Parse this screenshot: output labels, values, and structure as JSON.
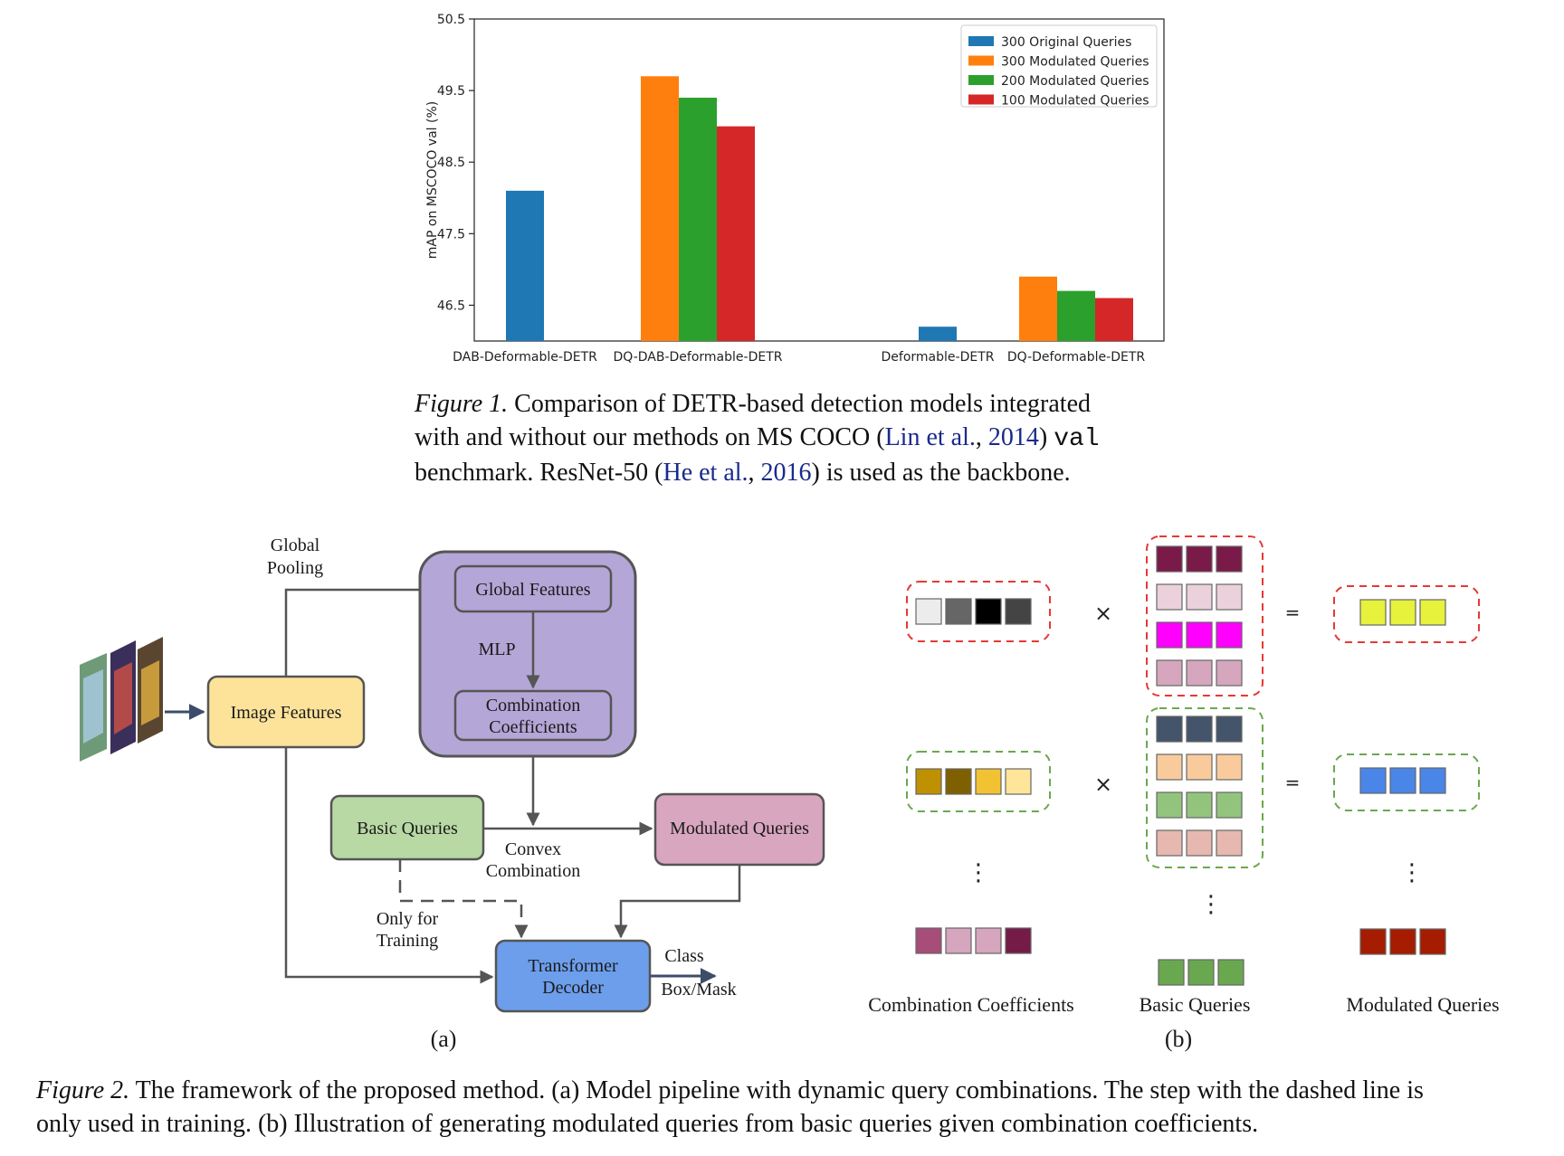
{
  "chart_data": {
    "type": "bar",
    "groups": [
      "DAB-Deformable-DETR",
      "DQ-DAB-Deformable-DETR",
      "Deformable-DETR",
      "DQ-Deformable-DETR"
    ],
    "series": [
      {
        "name": "300 Original Queries",
        "color": "#1f77b4",
        "values": [
          48.1,
          null,
          46.2,
          null
        ]
      },
      {
        "name": "300 Modulated Queries",
        "color": "#ff7f0e",
        "values": [
          null,
          49.7,
          null,
          46.9
        ]
      },
      {
        "name": "200 Modulated Queries",
        "color": "#2ca02c",
        "values": [
          null,
          49.4,
          null,
          46.7
        ]
      },
      {
        "name": "100 Modulated Queries",
        "color": "#d62728",
        "values": [
          null,
          49.0,
          null,
          46.6
        ]
      }
    ],
    "ylabel": "mAP on MSCOCO val (%)",
    "yticks": [
      "46.5",
      "47.5",
      "48.5",
      "49.5",
      "50.5"
    ],
    "ylim": [
      46.0,
      50.5
    ],
    "legend_position": "top-right"
  },
  "figure1": {
    "label": "Figure 1.",
    "line1": "Comparison of DETR-based detection models integrated",
    "line2_a": "with and without our methods on MS COCO (",
    "line2_cite1": "Lin et al.",
    "line2_sep": ", ",
    "line2_cite2": "2014",
    "line2_b": ") ",
    "line2_mono": "val",
    "line3_a": "benchmark. ResNet-50 (",
    "line3_cite1": "He et al.",
    "line3_sep": ", ",
    "line3_cite2": "2016",
    "line3_b": ") is used as the backbone."
  },
  "diagram_a": {
    "global_pooling_1": "Global",
    "global_pooling_2": "Pooling",
    "image_features": "Image Features",
    "global_features": "Global Features",
    "mlp": "MLP",
    "combination_coefficients_1": "Combination",
    "combination_coefficients_2": "Coefficients",
    "basic_queries": "Basic Queries",
    "modulated_queries": "Modulated Queries",
    "convex_1": "Convex",
    "convex_2": "Combination",
    "only_for_1": "Only for",
    "only_for_2": "Training",
    "transformer_1": "Transformer",
    "transformer_2": "Decoder",
    "class": "Class",
    "box_mask": "Box/Mask",
    "sublabel": "(a)",
    "colors": {
      "image_features": "#fde39a",
      "global_block": "#b4a6d6",
      "basic_queries": "#b8d8a4",
      "modulated_queries": "#d8a6bf",
      "transformer": "#6d9eeb"
    }
  },
  "diagram_b": {
    "times": "×",
    "equals": "=",
    "dots": "⋮",
    "combination_coefficients": "Combination Coefficients",
    "basic_queries": "Basic Queries",
    "modulated_queries": "Modulated Queries",
    "sublabel": "(b)",
    "row1_coeffs": [
      "#ececec",
      "#666666",
      "#000000",
      "#444444"
    ],
    "row1_basic": [
      [
        "#7a1a48",
        "#7a1a48",
        "#7a1a48"
      ],
      [
        "#ead1dc",
        "#ead1dc",
        "#ead1dc"
      ],
      [
        "#ff00ff",
        "#ff00ff",
        "#ff00ff"
      ],
      [
        "#d5a6bd",
        "#d5a6bd",
        "#d5a6bd"
      ]
    ],
    "row1_result": [
      "#e6f23c",
      "#e6f23c",
      "#e6f23c"
    ],
    "row2_coeffs": [
      "#bf9000",
      "#7f6000",
      "#f1c232",
      "#ffe599"
    ],
    "row2_basic": [
      [
        "#44546a",
        "#44546a",
        "#44546a"
      ],
      [
        "#f9cb9c",
        "#f9cb9c",
        "#f9cb9c"
      ],
      [
        "#93c47d",
        "#93c47d",
        "#93c47d"
      ],
      [
        "#e6b8af",
        "#e6b8af",
        "#e6b8af"
      ]
    ],
    "row2_result": [
      "#4a86e8",
      "#4a86e8",
      "#4a86e8"
    ],
    "last_coeffs": [
      "#a64d79",
      "#d5a6bd",
      "#d5a6bd",
      "#741b47"
    ],
    "last_basic": [
      "#6aa84f",
      "#6aa84f",
      "#6aa84f"
    ],
    "last_result": [
      "#a61c00",
      "#a61c00",
      "#a61c00"
    ]
  },
  "figure2": {
    "label": "Figure 2.",
    "line1": "The framework of the proposed method. (a) Model pipeline with dynamic query combinations. The step with the dashed line is",
    "line2": "only used in training. (b) Illustration of generating modulated queries from basic queries given combination coefficients."
  }
}
